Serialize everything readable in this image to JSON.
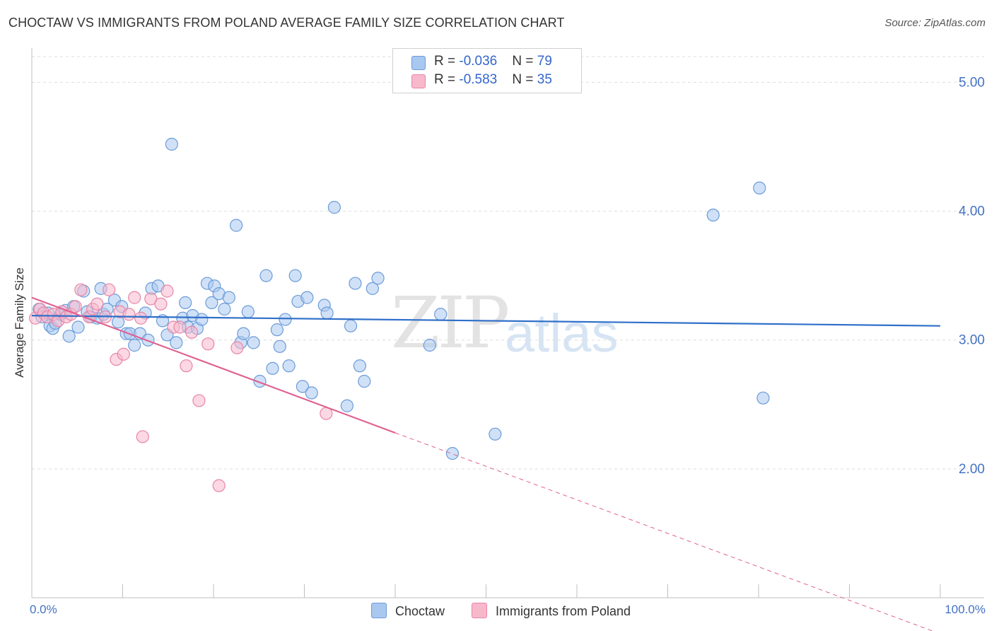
{
  "title": "CHOCTAW VS IMMIGRANTS FROM POLAND AVERAGE FAMILY SIZE CORRELATION CHART",
  "source": "Source: ZipAtlas.com",
  "watermark": {
    "part1": "ZIP",
    "part2": "atlas"
  },
  "legend": [
    {
      "r_label": "R = ",
      "r_value": "-0.036",
      "n_label": "N = ",
      "n_value": "79"
    },
    {
      "r_label": "R = ",
      "r_value": "-0.583",
      "n_label": "N = ",
      "n_value": "35"
    }
  ],
  "colors": {
    "choctaw_fill": "#a9c8f0",
    "choctaw_stroke": "#6b9bd8",
    "choctaw_line": "#2f6fc9",
    "poland_fill": "#f7b8cc",
    "poland_stroke": "#e885a6",
    "poland_line": "#e06090",
    "grid": "#dddddd",
    "axis_text": "#4472c4"
  },
  "chart_data": {
    "type": "scatter",
    "title": "CHOCTAW VS IMMIGRANTS FROM POLAND AVERAGE FAMILY SIZE CORRELATION CHART",
    "xlabel": "",
    "ylabel": "Average Family Size",
    "x_unit": "%",
    "xlim": [
      0,
      100
    ],
    "ylim": [
      1.0,
      5.2
    ],
    "x_tick_labels": [
      "0.0%",
      "100.0%"
    ],
    "y_ticks": [
      2.0,
      3.0,
      4.0,
      5.0
    ],
    "y_tick_labels": [
      "2.00",
      "3.00",
      "4.00",
      "5.00"
    ],
    "legend_position": "bottom",
    "series": [
      {
        "name": "Choctaw",
        "points": [
          [
            0.8,
            3.24
          ],
          [
            1.1,
            3.18
          ],
          [
            1.8,
            3.21
          ],
          [
            2.0,
            3.11
          ],
          [
            2.3,
            3.09
          ],
          [
            2.6,
            3.13
          ],
          [
            3.2,
            3.2
          ],
          [
            3.7,
            3.23
          ],
          [
            4.1,
            3.03
          ],
          [
            4.6,
            3.26
          ],
          [
            5.1,
            3.1
          ],
          [
            5.7,
            3.38
          ],
          [
            6.1,
            3.22
          ],
          [
            6.5,
            3.18
          ],
          [
            7.2,
            3.17
          ],
          [
            7.6,
            3.4
          ],
          [
            7.9,
            3.2
          ],
          [
            8.3,
            3.24
          ],
          [
            9.1,
            3.31
          ],
          [
            9.5,
            3.14
          ],
          [
            9.9,
            3.26
          ],
          [
            10.4,
            3.05
          ],
          [
            10.8,
            3.05
          ],
          [
            11.3,
            2.96
          ],
          [
            11.9,
            3.05
          ],
          [
            12.5,
            3.21
          ],
          [
            12.8,
            3.0
          ],
          [
            13.2,
            3.4
          ],
          [
            13.9,
            3.42
          ],
          [
            14.4,
            3.15
          ],
          [
            14.9,
            3.04
          ],
          [
            15.4,
            4.52
          ],
          [
            15.9,
            2.98
          ],
          [
            16.6,
            3.17
          ],
          [
            16.9,
            3.29
          ],
          [
            17.2,
            3.1
          ],
          [
            17.7,
            3.19
          ],
          [
            18.2,
            3.09
          ],
          [
            18.7,
            3.16
          ],
          [
            19.3,
            3.44
          ],
          [
            19.8,
            3.29
          ],
          [
            20.1,
            3.42
          ],
          [
            20.6,
            3.36
          ],
          [
            21.2,
            3.24
          ],
          [
            21.7,
            3.33
          ],
          [
            22.5,
            3.89
          ],
          [
            23.0,
            2.98
          ],
          [
            23.3,
            3.05
          ],
          [
            23.8,
            3.22
          ],
          [
            24.4,
            2.98
          ],
          [
            25.1,
            2.68
          ],
          [
            25.8,
            3.5
          ],
          [
            26.5,
            2.78
          ],
          [
            27.0,
            3.08
          ],
          [
            27.3,
            2.95
          ],
          [
            27.9,
            3.16
          ],
          [
            28.3,
            2.8
          ],
          [
            29.0,
            3.5
          ],
          [
            29.3,
            3.3
          ],
          [
            29.8,
            2.64
          ],
          [
            30.3,
            3.33
          ],
          [
            30.8,
            2.59
          ],
          [
            32.2,
            3.27
          ],
          [
            32.5,
            3.21
          ],
          [
            33.3,
            4.03
          ],
          [
            34.7,
            2.49
          ],
          [
            35.1,
            3.11
          ],
          [
            35.6,
            3.44
          ],
          [
            36.1,
            2.8
          ],
          [
            36.6,
            2.68
          ],
          [
            37.5,
            3.4
          ],
          [
            38.1,
            3.48
          ],
          [
            43.8,
            2.96
          ],
          [
            45.0,
            3.2
          ],
          [
            46.3,
            2.12
          ],
          [
            51.0,
            2.27
          ],
          [
            75.0,
            3.97
          ],
          [
            80.1,
            4.18
          ],
          [
            80.5,
            2.55
          ]
        ],
        "trend": {
          "x": [
            0,
            100
          ],
          "y": [
            3.19,
            3.11
          ],
          "style": "solid"
        }
      },
      {
        "name": "Immigrants from Poland",
        "points": [
          [
            0.4,
            3.17
          ],
          [
            0.9,
            3.24
          ],
          [
            1.3,
            3.21
          ],
          [
            1.7,
            3.18
          ],
          [
            2.4,
            3.2
          ],
          [
            2.9,
            3.15
          ],
          [
            3.3,
            3.22
          ],
          [
            3.8,
            3.18
          ],
          [
            4.3,
            3.2
          ],
          [
            4.8,
            3.26
          ],
          [
            5.4,
            3.39
          ],
          [
            6.3,
            3.18
          ],
          [
            6.7,
            3.24
          ],
          [
            7.2,
            3.28
          ],
          [
            8.1,
            3.18
          ],
          [
            8.5,
            3.39
          ],
          [
            9.3,
            2.85
          ],
          [
            9.7,
            3.22
          ],
          [
            10.1,
            2.89
          ],
          [
            10.7,
            3.2
          ],
          [
            11.3,
            3.33
          ],
          [
            12.0,
            3.17
          ],
          [
            12.2,
            2.25
          ],
          [
            13.1,
            3.32
          ],
          [
            14.2,
            3.28
          ],
          [
            14.9,
            3.38
          ],
          [
            15.6,
            3.1
          ],
          [
            16.3,
            3.1
          ],
          [
            17.0,
            2.8
          ],
          [
            17.6,
            3.06
          ],
          [
            18.4,
            2.53
          ],
          [
            19.4,
            2.97
          ],
          [
            20.6,
            1.87
          ],
          [
            22.6,
            2.94
          ],
          [
            32.4,
            2.43
          ]
        ],
        "trend": {
          "x": [
            0,
            40,
            100
          ],
          "y": [
            3.33,
            2.28,
            0.72
          ],
          "style": "solid-then-dashed",
          "solid_until_x": 40
        }
      }
    ]
  },
  "bottom_legend": [
    {
      "label": "Choctaw"
    },
    {
      "label": "Immigrants from Poland"
    }
  ]
}
